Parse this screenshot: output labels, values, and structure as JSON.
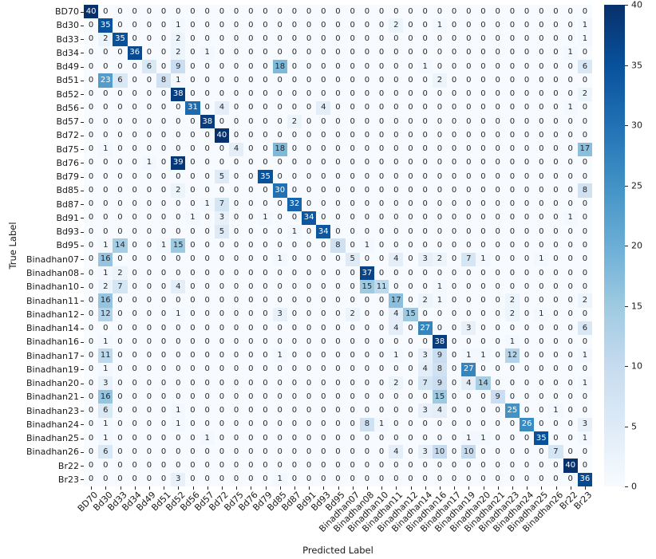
{
  "figure": {
    "x_axis_title": "Predicted Label",
    "y_axis_title": "True Label"
  },
  "colorbar": {
    "ticks": [
      40,
      35,
      30,
      25,
      20,
      15,
      10,
      5,
      0
    ],
    "vmin": 0,
    "vmax": 40
  },
  "style": {
    "blues_stops": [
      "#f7fbff",
      "#deebf7",
      "#c6dbef",
      "#9ecae1",
      "#6baed6",
      "#4292c6",
      "#2171b5",
      "#08519c",
      "#08306b"
    ],
    "dark_text": "#262626",
    "light_text": "#ffffff",
    "tick_color": "#262626"
  },
  "chart_data": {
    "type": "heatmap",
    "colormap": "Blues",
    "title": "",
    "xlabel": "Predicted Label",
    "ylabel": "True Label",
    "vmin": 0,
    "vmax": 40,
    "legend_position": "right-colorbar",
    "grid": false,
    "categories": [
      "BD70",
      "Bd30",
      "Bd33",
      "Bd34",
      "Bd49",
      "Bd51",
      "Bd52",
      "Bd56",
      "Bd57",
      "Bd72",
      "Bd75",
      "Bd76",
      "Bd79",
      "Bd85",
      "Bd87",
      "Bd91",
      "Bd93",
      "Bd95",
      "Binadhan07",
      "Binadhan08",
      "Binadhan10",
      "Binadhan11",
      "Binadhan12",
      "Binadhan14",
      "Binadhan16",
      "Binadhan17",
      "Binadhan19",
      "Binadhan20",
      "Binadhan21",
      "Binadhan23",
      "Binadhan24",
      "Binadhan25",
      "Binadhan26",
      "Br22",
      "Br23"
    ],
    "matrix": [
      [
        40,
        0,
        0,
        0,
        0,
        0,
        0,
        0,
        0,
        0,
        0,
        0,
        0,
        0,
        0,
        0,
        0,
        0,
        0,
        0,
        0,
        0,
        0,
        0,
        0,
        0,
        0,
        0,
        0,
        0,
        0,
        0,
        0,
        0,
        0
      ],
      [
        0,
        35,
        0,
        0,
        0,
        0,
        1,
        0,
        0,
        0,
        0,
        0,
        0,
        0,
        0,
        0,
        0,
        0,
        0,
        0,
        0,
        2,
        0,
        0,
        1,
        0,
        0,
        0,
        0,
        0,
        0,
        0,
        0,
        0,
        1
      ],
      [
        0,
        2,
        35,
        0,
        0,
        0,
        2,
        0,
        0,
        0,
        0,
        0,
        0,
        0,
        0,
        0,
        0,
        0,
        0,
        0,
        0,
        0,
        0,
        0,
        0,
        0,
        0,
        0,
        0,
        0,
        0,
        0,
        0,
        0,
        1
      ],
      [
        0,
        0,
        0,
        36,
        0,
        0,
        2,
        0,
        1,
        0,
        0,
        0,
        0,
        0,
        0,
        0,
        0,
        0,
        0,
        0,
        0,
        0,
        0,
        0,
        0,
        0,
        0,
        0,
        0,
        0,
        0,
        0,
        0,
        1,
        0
      ],
      [
        0,
        0,
        0,
        0,
        6,
        0,
        9,
        0,
        0,
        0,
        0,
        0,
        0,
        18,
        0,
        0,
        0,
        0,
        0,
        0,
        0,
        0,
        0,
        1,
        0,
        0,
        0,
        0,
        0,
        0,
        0,
        0,
        0,
        0,
        6
      ],
      [
        0,
        23,
        6,
        0,
        0,
        8,
        1,
        0,
        0,
        0,
        0,
        0,
        0,
        0,
        0,
        0,
        0,
        0,
        0,
        0,
        0,
        0,
        0,
        0,
        2,
        0,
        0,
        0,
        0,
        0,
        0,
        0,
        0,
        0,
        0
      ],
      [
        0,
        0,
        0,
        0,
        0,
        0,
        38,
        0,
        0,
        0,
        0,
        0,
        0,
        0,
        0,
        0,
        0,
        0,
        0,
        0,
        0,
        0,
        0,
        0,
        0,
        0,
        0,
        0,
        0,
        0,
        0,
        0,
        0,
        0,
        2
      ],
      [
        0,
        0,
        0,
        0,
        0,
        0,
        0,
        31,
        0,
        4,
        0,
        0,
        0,
        0,
        0,
        0,
        4,
        0,
        0,
        0,
        0,
        0,
        0,
        0,
        0,
        0,
        0,
        0,
        0,
        0,
        0,
        0,
        0,
        1,
        0
      ],
      [
        0,
        0,
        0,
        0,
        0,
        0,
        0,
        0,
        38,
        0,
        0,
        0,
        0,
        0,
        2,
        0,
        0,
        0,
        0,
        0,
        0,
        0,
        0,
        0,
        0,
        0,
        0,
        0,
        0,
        0,
        0,
        0,
        0,
        0,
        0
      ],
      [
        0,
        0,
        0,
        0,
        0,
        0,
        0,
        0,
        0,
        40,
        0,
        0,
        0,
        0,
        0,
        0,
        0,
        0,
        0,
        0,
        0,
        0,
        0,
        0,
        0,
        0,
        0,
        0,
        0,
        0,
        0,
        0,
        0,
        0,
        0
      ],
      [
        0,
        1,
        0,
        0,
        0,
        0,
        0,
        0,
        0,
        0,
        4,
        0,
        0,
        18,
        0,
        0,
        0,
        0,
        0,
        0,
        0,
        0,
        0,
        0,
        0,
        0,
        0,
        0,
        0,
        0,
        0,
        0,
        0,
        0,
        17
      ],
      [
        0,
        0,
        0,
        0,
        1,
        0,
        39,
        0,
        0,
        0,
        0,
        0,
        0,
        0,
        0,
        0,
        0,
        0,
        0,
        0,
        0,
        0,
        0,
        0,
        0,
        0,
        0,
        0,
        0,
        0,
        0,
        0,
        0,
        0,
        0
      ],
      [
        0,
        0,
        0,
        0,
        0,
        0,
        0,
        0,
        0,
        5,
        0,
        0,
        35,
        0,
        0,
        0,
        0,
        0,
        0,
        0,
        0,
        0,
        0,
        0,
        0,
        0,
        0,
        0,
        0,
        0,
        0,
        0,
        0,
        0,
        0
      ],
      [
        0,
        0,
        0,
        0,
        0,
        0,
        2,
        0,
        0,
        0,
        0,
        0,
        0,
        30,
        0,
        0,
        0,
        0,
        0,
        0,
        0,
        0,
        0,
        0,
        0,
        0,
        0,
        0,
        0,
        0,
        0,
        0,
        0,
        0,
        8
      ],
      [
        0,
        0,
        0,
        0,
        0,
        0,
        0,
        0,
        1,
        7,
        0,
        0,
        0,
        0,
        32,
        0,
        0,
        0,
        0,
        0,
        0,
        0,
        0,
        0,
        0,
        0,
        0,
        0,
        0,
        0,
        0,
        0,
        0,
        0,
        0
      ],
      [
        0,
        0,
        0,
        0,
        0,
        0,
        0,
        1,
        0,
        3,
        0,
        0,
        1,
        0,
        0,
        34,
        0,
        0,
        0,
        0,
        0,
        0,
        0,
        0,
        0,
        0,
        0,
        0,
        0,
        0,
        0,
        0,
        0,
        1,
        0
      ],
      [
        0,
        0,
        0,
        0,
        0,
        0,
        0,
        0,
        0,
        5,
        0,
        0,
        0,
        0,
        1,
        0,
        34,
        0,
        0,
        0,
        0,
        0,
        0,
        0,
        0,
        0,
        0,
        0,
        0,
        0,
        0,
        0,
        0,
        0,
        0
      ],
      [
        0,
        1,
        14,
        0,
        0,
        1,
        15,
        0,
        0,
        0,
        0,
        0,
        0,
        0,
        0,
        0,
        0,
        8,
        0,
        1,
        0,
        0,
        0,
        0,
        0,
        0,
        0,
        0,
        0,
        0,
        0,
        0,
        0,
        0,
        0
      ],
      [
        0,
        16,
        0,
        0,
        0,
        0,
        0,
        0,
        0,
        0,
        0,
        0,
        0,
        1,
        0,
        0,
        0,
        0,
        5,
        0,
        0,
        4,
        0,
        3,
        2,
        0,
        7,
        1,
        0,
        0,
        0,
        1,
        0,
        0,
        0
      ],
      [
        0,
        1,
        2,
        0,
        0,
        0,
        0,
        0,
        0,
        0,
        0,
        0,
        0,
        0,
        0,
        0,
        0,
        0,
        0,
        37,
        0,
        0,
        0,
        0,
        0,
        0,
        0,
        0,
        0,
        0,
        0,
        0,
        0,
        0,
        0
      ],
      [
        0,
        2,
        7,
        0,
        0,
        0,
        4,
        0,
        0,
        0,
        0,
        0,
        0,
        0,
        0,
        0,
        0,
        0,
        0,
        15,
        11,
        0,
        0,
        0,
        1,
        0,
        0,
        0,
        0,
        0,
        0,
        0,
        0,
        0,
        0
      ],
      [
        0,
        16,
        0,
        0,
        0,
        0,
        0,
        0,
        0,
        0,
        0,
        0,
        0,
        0,
        0,
        0,
        0,
        0,
        0,
        0,
        0,
        17,
        0,
        2,
        1,
        0,
        0,
        0,
        0,
        2,
        0,
        0,
        0,
        0,
        2
      ],
      [
        0,
        12,
        0,
        0,
        0,
        0,
        1,
        0,
        0,
        0,
        0,
        0,
        0,
        3,
        0,
        0,
        0,
        0,
        2,
        0,
        0,
        4,
        15,
        0,
        0,
        0,
        0,
        0,
        0,
        2,
        0,
        1,
        0,
        0,
        0
      ],
      [
        0,
        0,
        0,
        0,
        0,
        0,
        0,
        0,
        0,
        0,
        0,
        0,
        0,
        0,
        0,
        0,
        0,
        0,
        0,
        0,
        0,
        4,
        0,
        27,
        0,
        0,
        3,
        0,
        0,
        0,
        0,
        0,
        0,
        0,
        6
      ],
      [
        0,
        1,
        0,
        0,
        0,
        0,
        0,
        0,
        0,
        0,
        0,
        0,
        0,
        0,
        0,
        0,
        0,
        0,
        0,
        0,
        0,
        0,
        0,
        0,
        38,
        0,
        0,
        0,
        0,
        1,
        0,
        0,
        0,
        0,
        0
      ],
      [
        0,
        11,
        0,
        0,
        0,
        0,
        0,
        0,
        0,
        0,
        0,
        0,
        0,
        1,
        0,
        0,
        0,
        0,
        0,
        0,
        0,
        1,
        0,
        3,
        9,
        0,
        1,
        1,
        0,
        12,
        0,
        0,
        0,
        0,
        1
      ],
      [
        0,
        1,
        0,
        0,
        0,
        0,
        0,
        0,
        0,
        0,
        0,
        0,
        0,
        0,
        0,
        0,
        0,
        0,
        0,
        0,
        0,
        0,
        0,
        4,
        8,
        0,
        27,
        0,
        0,
        0,
        0,
        0,
        0,
        0,
        0
      ],
      [
        0,
        3,
        0,
        0,
        0,
        0,
        0,
        0,
        0,
        0,
        0,
        0,
        0,
        0,
        0,
        0,
        0,
        0,
        0,
        0,
        0,
        2,
        0,
        7,
        9,
        0,
        4,
        14,
        0,
        0,
        0,
        0,
        0,
        0,
        1
      ],
      [
        0,
        16,
        0,
        0,
        0,
        0,
        0,
        0,
        0,
        0,
        0,
        0,
        0,
        0,
        0,
        0,
        0,
        0,
        0,
        0,
        0,
        0,
        0,
        0,
        15,
        0,
        0,
        0,
        9,
        0,
        0,
        0,
        0,
        0,
        0
      ],
      [
        0,
        6,
        0,
        0,
        0,
        0,
        1,
        0,
        0,
        0,
        0,
        0,
        0,
        0,
        0,
        0,
        0,
        0,
        0,
        0,
        0,
        0,
        0,
        3,
        4,
        0,
        0,
        0,
        0,
        25,
        0,
        0,
        1,
        0,
        0
      ],
      [
        0,
        1,
        0,
        0,
        0,
        0,
        1,
        0,
        0,
        0,
        0,
        0,
        0,
        0,
        0,
        0,
        0,
        0,
        0,
        8,
        1,
        0,
        0,
        0,
        0,
        0,
        0,
        0,
        0,
        0,
        26,
        0,
        0,
        0,
        3
      ],
      [
        0,
        1,
        0,
        0,
        0,
        0,
        0,
        0,
        1,
        0,
        0,
        0,
        0,
        0,
        0,
        0,
        0,
        0,
        0,
        0,
        0,
        0,
        0,
        0,
        0,
        0,
        1,
        1,
        0,
        0,
        0,
        35,
        0,
        0,
        1
      ],
      [
        0,
        6,
        0,
        0,
        0,
        0,
        0,
        0,
        0,
        0,
        0,
        0,
        0,
        0,
        0,
        0,
        0,
        0,
        0,
        0,
        0,
        4,
        0,
        3,
        10,
        0,
        10,
        0,
        0,
        0,
        0,
        0,
        7,
        0,
        0
      ],
      [
        0,
        0,
        0,
        0,
        0,
        0,
        0,
        0,
        0,
        0,
        0,
        0,
        0,
        0,
        0,
        0,
        0,
        0,
        0,
        0,
        0,
        0,
        0,
        0,
        0,
        0,
        0,
        0,
        0,
        0,
        0,
        0,
        0,
        40,
        0
      ],
      [
        0,
        0,
        0,
        0,
        0,
        0,
        3,
        0,
        0,
        0,
        0,
        0,
        0,
        1,
        0,
        0,
        0,
        0,
        0,
        0,
        0,
        0,
        0,
        0,
        0,
        0,
        0,
        0,
        0,
        0,
        0,
        0,
        0,
        0,
        36
      ]
    ]
  }
}
